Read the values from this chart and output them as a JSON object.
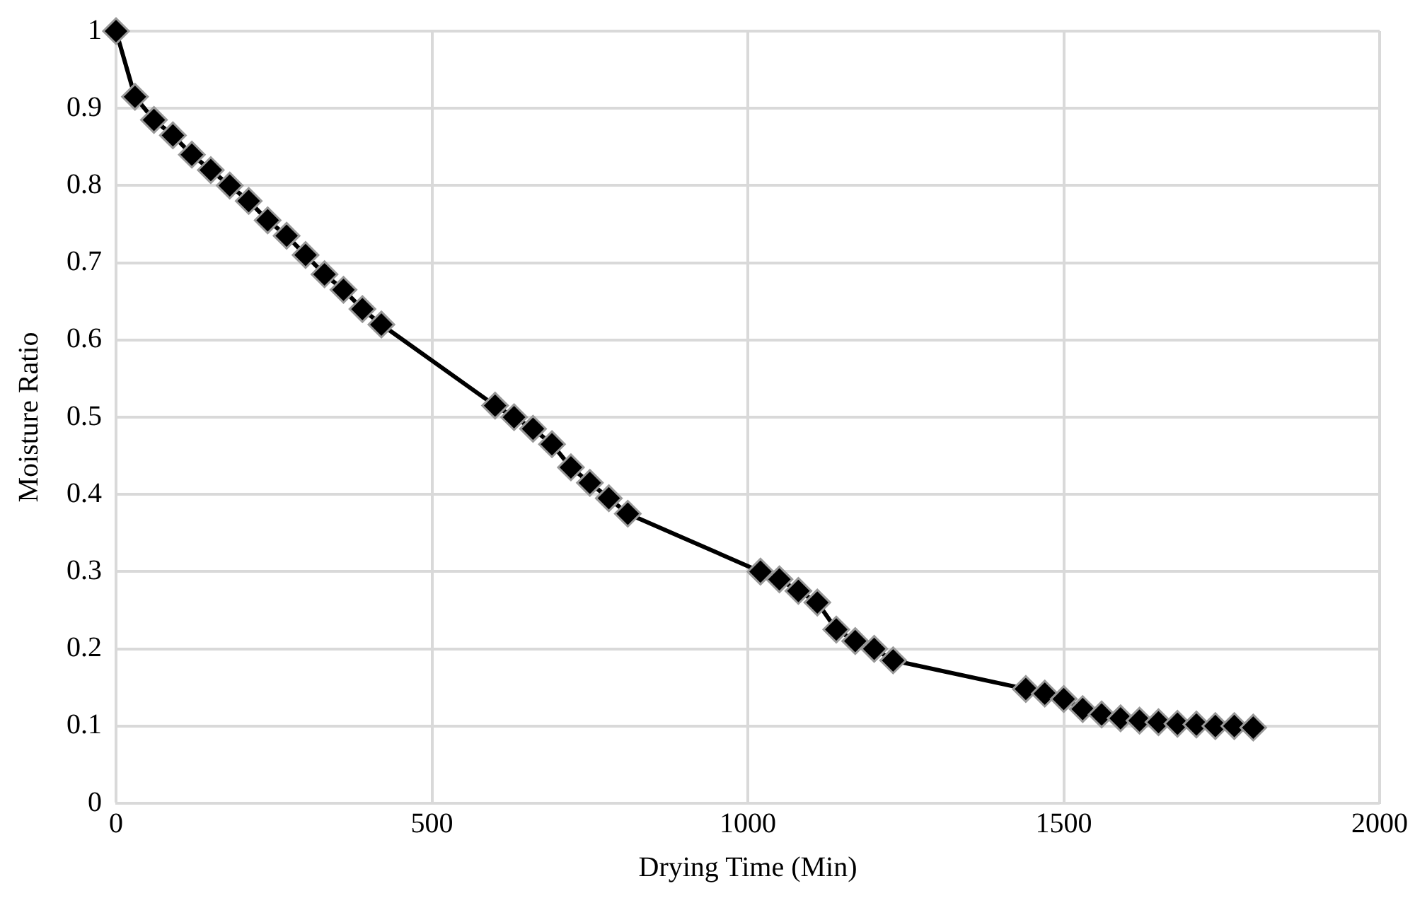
{
  "chart_data": {
    "type": "line",
    "xlabel": "Drying Time (Min)",
    "ylabel": "Moisture Ratio",
    "x": [
      0,
      30,
      60,
      90,
      120,
      150,
      180,
      210,
      240,
      270,
      300,
      330,
      360,
      390,
      420,
      600,
      630,
      660,
      690,
      720,
      750,
      780,
      810,
      1020,
      1050,
      1080,
      1110,
      1140,
      1170,
      1200,
      1230,
      1440,
      1470,
      1500,
      1530,
      1560,
      1590,
      1620,
      1650,
      1680,
      1710,
      1740,
      1770,
      1800
    ],
    "series": [
      {
        "color": "#000000",
        "values": [
          1,
          0.915,
          0.885,
          0.865,
          0.84,
          0.82,
          0.8,
          0.78,
          0.755,
          0.735,
          0.71,
          0.685,
          0.665,
          0.64,
          0.62,
          0.515,
          0.5,
          0.485,
          0.465,
          0.435,
          0.415,
          0.395,
          0.375,
          0.3,
          0.29,
          0.275,
          0.26,
          0.225,
          0.21,
          0.2,
          0.185,
          0.148,
          0.142,
          0.135,
          0.122,
          0.115,
          0.11,
          0.107,
          0.105,
          0.103,
          0.102,
          0.1,
          0.1,
          0.098
        ]
      }
    ],
    "xlim": [
      0,
      2000
    ],
    "xticks": [
      0,
      500,
      1000,
      1500,
      2000
    ],
    "ylim": [
      0,
      1
    ],
    "yticks": [
      0,
      0.1,
      0.2,
      0.3,
      0.4,
      0.5,
      0.6,
      0.7,
      0.8,
      0.9,
      1
    ],
    "grid": true,
    "legend": false,
    "marker": "diamond",
    "line_style": "solid"
  }
}
